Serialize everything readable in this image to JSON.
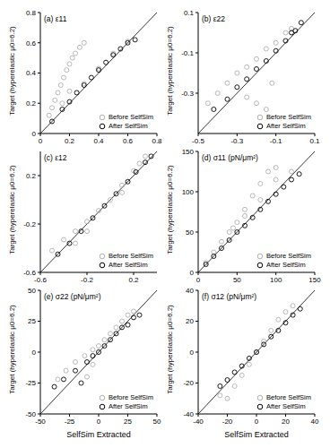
{
  "chart_data": [
    {
      "type": "scatter",
      "title": "(a) ε11",
      "ylabel": "Target (hyperelastic μ0=6.2)",
      "xlim": [
        0,
        0.8
      ],
      "xticks": [
        0,
        0.2,
        0.4,
        0.6,
        0.8
      ],
      "ylim": [
        0,
        0.8
      ],
      "yticks": [
        0,
        0.2,
        0.4,
        0.6,
        0.8
      ],
      "grid": false,
      "legend": "lower right",
      "diagonal": [
        [
          0,
          0
        ],
        [
          0.8,
          0.8
        ]
      ],
      "series": [
        {
          "name": "Before SelfSim",
          "color": "#b0b0b0",
          "marker": "open circle",
          "points": [
            [
              0.06,
              0.12
            ],
            [
              0.08,
              0.17
            ],
            [
              0.1,
              0.22
            ],
            [
              0.12,
              0.27
            ],
            [
              0.14,
              0.32
            ],
            [
              0.16,
              0.37
            ],
            [
              0.18,
              0.42
            ],
            [
              0.2,
              0.46
            ],
            [
              0.22,
              0.5
            ],
            [
              0.24,
              0.53
            ],
            [
              0.27,
              0.57
            ],
            [
              0.3,
              0.6
            ],
            [
              0.15,
              0.2
            ],
            [
              0.2,
              0.28
            ],
            [
              0.3,
              0.33
            ],
            [
              0.4,
              0.43
            ],
            [
              0.5,
              0.53
            ],
            [
              0.6,
              0.61
            ]
          ]
        },
        {
          "name": "After SelfSim",
          "color": "#000000",
          "marker": "open circle",
          "points": [
            [
              0.08,
              0.08
            ],
            [
              0.15,
              0.16
            ],
            [
              0.2,
              0.21
            ],
            [
              0.25,
              0.27
            ],
            [
              0.3,
              0.32
            ],
            [
              0.35,
              0.37
            ],
            [
              0.4,
              0.42
            ],
            [
              0.45,
              0.47
            ],
            [
              0.5,
              0.52
            ],
            [
              0.55,
              0.56
            ],
            [
              0.6,
              0.6
            ],
            [
              0.65,
              0.62
            ]
          ]
        }
      ]
    },
    {
      "type": "scatter",
      "title": "(b) ε22",
      "ylabel": "Target (hyperelastic μ0=6.2)",
      "xlim": [
        -0.5,
        0.1
      ],
      "xticks": [
        -0.5,
        -0.3,
        -0.1,
        0.1
      ],
      "ylim": [
        -0.5,
        0.1
      ],
      "yticks": [
        -0.3,
        -0.1,
        0.1
      ],
      "grid": false,
      "legend": "lower right",
      "diagonal": [
        [
          -0.5,
          -0.5
        ],
        [
          0.1,
          0.1
        ]
      ],
      "series": [
        {
          "name": "Before SelfSim",
          "color": "#b0b0b0",
          "marker": "open circle",
          "points": [
            [
              -0.45,
              -0.35
            ],
            [
              -0.4,
              -0.3
            ],
            [
              -0.35,
              -0.25
            ],
            [
              -0.3,
              -0.2
            ],
            [
              -0.25,
              -0.17
            ],
            [
              -0.2,
              -0.13
            ],
            [
              -0.15,
              -0.08
            ],
            [
              -0.1,
              -0.05
            ],
            [
              -0.05,
              0
            ],
            [
              -0.02,
              0.02
            ],
            [
              -0.25,
              -0.32
            ],
            [
              -0.2,
              -0.35
            ],
            [
              -0.15,
              -0.38
            ],
            [
              -0.12,
              -0.25
            ]
          ]
        },
        {
          "name": "After SelfSim",
          "color": "#000000",
          "marker": "open circle",
          "points": [
            [
              -0.42,
              -0.38
            ],
            [
              -0.35,
              -0.33
            ],
            [
              -0.3,
              -0.27
            ],
            [
              -0.25,
              -0.23
            ],
            [
              -0.2,
              -0.18
            ],
            [
              -0.15,
              -0.14
            ],
            [
              -0.1,
              -0.09
            ],
            [
              -0.05,
              -0.04
            ],
            [
              -0.02,
              0
            ],
            [
              0,
              0.01
            ],
            [
              0.03,
              0.05
            ]
          ]
        }
      ]
    },
    {
      "type": "scatter",
      "title": "(c) ε12",
      "ylabel": "Target (hyperelastic μ0=6.2)",
      "xlim": [
        -0.6,
        0.4
      ],
      "xticks": [
        -0.6,
        -0.2,
        0.2
      ],
      "ylim": [
        -0.6,
        0.4
      ],
      "yticks": [
        -0.6,
        -0.2,
        0.2
      ],
      "grid": false,
      "legend": "lower right",
      "diagonal": [
        [
          -0.6,
          -0.6
        ],
        [
          0.4,
          0.4
        ]
      ],
      "series": [
        {
          "name": "Before SelfSim",
          "color": "#b0b0b0",
          "marker": "open circle",
          "points": [
            [
              -0.5,
              -0.42
            ],
            [
              -0.4,
              -0.33
            ],
            [
              -0.3,
              -0.26
            ],
            [
              -0.2,
              -0.18
            ],
            [
              -0.1,
              -0.09
            ],
            [
              0,
              0
            ],
            [
              0.1,
              0.12
            ],
            [
              0.2,
              0.24
            ],
            [
              0.25,
              0.3
            ],
            [
              0.3,
              0.36
            ],
            [
              -0.3,
              -0.36
            ],
            [
              -0.2,
              -0.26
            ],
            [
              0.1,
              0.06
            ]
          ]
        },
        {
          "name": "After SelfSim",
          "color": "#000000",
          "marker": "open circle",
          "points": [
            [
              -0.45,
              -0.45
            ],
            [
              -0.35,
              -0.36
            ],
            [
              -0.25,
              -0.26
            ],
            [
              -0.15,
              -0.15
            ],
            [
              -0.05,
              -0.05
            ],
            [
              0.05,
              0.05
            ],
            [
              0.15,
              0.15
            ],
            [
              0.22,
              0.23
            ],
            [
              0.3,
              0.31
            ],
            [
              0.35,
              0.36
            ]
          ]
        }
      ]
    },
    {
      "type": "scatter",
      "title": "(d) σ11 (pN/μm²)",
      "ylabel": "Target (hyperelastic μ0=6.2)",
      "xlim": [
        0,
        150
      ],
      "xticks": [
        0,
        50,
        100,
        150
      ],
      "ylim": [
        0,
        150
      ],
      "yticks": [
        0,
        50,
        100,
        150
      ],
      "grid": false,
      "legend": "lower right",
      "diagonal": [
        [
          0,
          0
        ],
        [
          150,
          150
        ]
      ],
      "series": [
        {
          "name": "Before SelfSim",
          "color": "#b0b0b0",
          "marker": "open circle",
          "points": [
            [
              10,
              12
            ],
            [
              20,
              25
            ],
            [
              30,
              38
            ],
            [
              40,
              50
            ],
            [
              50,
              62
            ],
            [
              60,
              78
            ],
            [
              70,
              95
            ],
            [
              80,
              110
            ],
            [
              90,
              125
            ],
            [
              100,
              130
            ],
            [
              45,
              55
            ],
            [
              60,
              70
            ],
            [
              80,
              90
            ],
            [
              100,
              115
            ],
            [
              120,
              125
            ]
          ]
        },
        {
          "name": "After SelfSim",
          "color": "#000000",
          "marker": "open circle",
          "points": [
            [
              10,
              10
            ],
            [
              20,
              20
            ],
            [
              30,
              30
            ],
            [
              40,
              40
            ],
            [
              50,
              50
            ],
            [
              60,
              58
            ],
            [
              70,
              68
            ],
            [
              80,
              78
            ],
            [
              90,
              88
            ],
            [
              100,
              97
            ],
            [
              110,
              106
            ],
            [
              120,
              115
            ],
            [
              130,
              122
            ]
          ]
        }
      ]
    },
    {
      "type": "scatter",
      "title": "(e) σ22 (pN/μm²)",
      "ylabel": "Target (hyperelastic μ0=6.2)",
      "xlabel": "SelfSim Extracted",
      "xlim": [
        -50,
        50
      ],
      "xticks": [
        -50,
        -25,
        0,
        25,
        50
      ],
      "ylim": [
        -50,
        50
      ],
      "yticks": [
        -50,
        -25,
        0,
        25,
        50
      ],
      "grid": false,
      "legend": "lower right",
      "diagonal": [
        [
          -50,
          -50
        ],
        [
          50,
          50
        ]
      ],
      "series": [
        {
          "name": "Before SelfSim",
          "color": "#b0b0b0",
          "marker": "open circle",
          "points": [
            [
              -35,
              -22
            ],
            [
              -28,
              -15
            ],
            [
              -20,
              -8
            ],
            [
              -12,
              -3
            ],
            [
              -5,
              2
            ],
            [
              0,
              5
            ],
            [
              5,
              10
            ],
            [
              10,
              15
            ],
            [
              15,
              20
            ],
            [
              20,
              25
            ],
            [
              25,
              30
            ],
            [
              30,
              33
            ],
            [
              -10,
              -20
            ],
            [
              -5,
              -10
            ]
          ]
        },
        {
          "name": "After SelfSim",
          "color": "#000000",
          "marker": "open circle",
          "points": [
            [
              -38,
              -28
            ],
            [
              -30,
              -22
            ],
            [
              -20,
              -15
            ],
            [
              -10,
              -8
            ],
            [
              -5,
              -3
            ],
            [
              0,
              0
            ],
            [
              5,
              5
            ],
            [
              10,
              10
            ],
            [
              15,
              15
            ],
            [
              20,
              20
            ],
            [
              25,
              22
            ],
            [
              30,
              28
            ],
            [
              35,
              30
            ],
            [
              -15,
              -25
            ]
          ]
        }
      ]
    },
    {
      "type": "scatter",
      "title": "(f) σ12 (pN/μm²)",
      "ylabel": "Target (hyperelastic μ0=6.2)",
      "xlabel": "SelfSim Extracted",
      "xlim": [
        -40,
        40
      ],
      "xticks": [
        -40,
        -20,
        0,
        20,
        40
      ],
      "ylim": [
        -40,
        40
      ],
      "yticks": [
        -40,
        -20,
        0,
        20,
        40
      ],
      "grid": false,
      "legend": "lower right",
      "diagonal": [
        [
          -40,
          -40
        ],
        [
          40,
          40
        ]
      ],
      "series": [
        {
          "name": "Before SelfSim",
          "color": "#b0b0b0",
          "marker": "open circle",
          "points": [
            [
              -20,
              -30
            ],
            [
              -15,
              -22
            ],
            [
              -10,
              -15
            ],
            [
              -5,
              -8
            ],
            [
              0,
              0
            ],
            [
              5,
              7
            ],
            [
              10,
              14
            ],
            [
              15,
              21
            ],
            [
              20,
              26
            ],
            [
              25,
              30
            ],
            [
              -25,
              -28
            ]
          ]
        },
        {
          "name": "After SelfSim",
          "color": "#000000",
          "marker": "open circle",
          "points": [
            [
              -25,
              -22
            ],
            [
              -20,
              -18
            ],
            [
              -15,
              -13
            ],
            [
              -10,
              -9
            ],
            [
              -5,
              -4
            ],
            [
              0,
              0
            ],
            [
              5,
              5
            ],
            [
              10,
              10
            ],
            [
              15,
              14
            ],
            [
              20,
              19
            ],
            [
              25,
              24
            ],
            [
              30,
              28
            ]
          ]
        }
      ]
    }
  ]
}
